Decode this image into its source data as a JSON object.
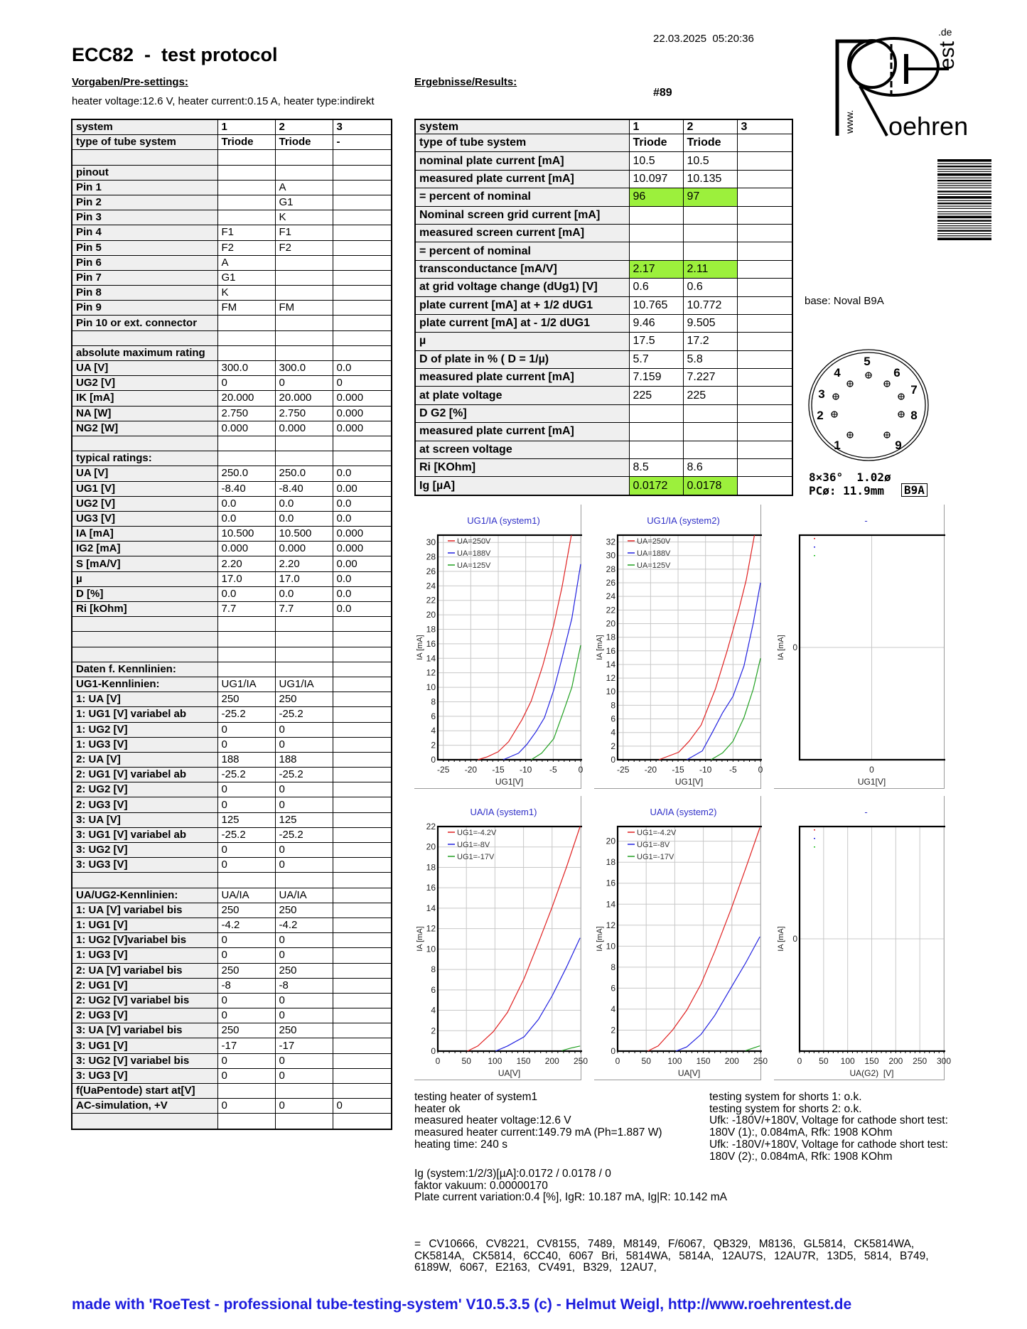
{
  "header": {
    "title": "ECC82  -  test protocol",
    "datetime": "22.03.2025  05:20:36",
    "presettings_heading": "Vorgaben/Pre-settings:",
    "results_heading": "Ergebnisse/Results:",
    "heater_info": "heater voltage:12.6 V, heater current:0.15 A, heater type:indirekt",
    "test_number": "#89"
  },
  "logo": {
    "main": "oehren",
    "vertical": "est",
    "tld": ".de",
    "www": "www."
  },
  "presettings_table": {
    "rows": [
      [
        "system",
        "1",
        "2",
        "3"
      ],
      [
        "type of tube system",
        "Triode",
        "Triode",
        "-"
      ],
      [
        "",
        "",
        "",
        ""
      ],
      [
        "pinout",
        "",
        "",
        ""
      ],
      [
        "Pin 1",
        "",
        "A",
        ""
      ],
      [
        "Pin 2",
        "",
        "G1",
        ""
      ],
      [
        "Pin 3",
        "",
        "K",
        ""
      ],
      [
        "Pin 4",
        "F1",
        "F1",
        ""
      ],
      [
        "Pin 5",
        "F2",
        "F2",
        ""
      ],
      [
        "Pin 6",
        "A",
        "",
        ""
      ],
      [
        "Pin 7",
        "G1",
        "",
        ""
      ],
      [
        "Pin 8",
        "K",
        "",
        ""
      ],
      [
        "Pin 9",
        "FM",
        "FM",
        ""
      ],
      [
        "Pin 10 or ext. connector",
        "",
        "",
        ""
      ],
      [
        "",
        "",
        "",
        ""
      ],
      [
        "absolute maximum rating",
        "",
        "",
        ""
      ],
      [
        "UA [V]",
        "300.0",
        "300.0",
        "0.0"
      ],
      [
        "UG2 [V]",
        "0",
        "0",
        "0"
      ],
      [
        "IK [mA]",
        "20.000",
        "20.000",
        "0.000"
      ],
      [
        "NA [W]",
        "2.750",
        "2.750",
        "0.000"
      ],
      [
        "NG2 [W]",
        "0.000",
        "0.000",
        "0.000"
      ],
      [
        "",
        "",
        "",
        ""
      ],
      [
        "typical ratings:",
        "",
        "",
        ""
      ],
      [
        "UA [V]",
        "250.0",
        "250.0",
        "0.0"
      ],
      [
        "UG1 [V]",
        "-8.40",
        "-8.40",
        "0.00"
      ],
      [
        "UG2 [V]",
        "0.0",
        "0.0",
        "0.0"
      ],
      [
        "UG3 [V]",
        "0.0",
        "0.0",
        "0.0"
      ],
      [
        "IA [mA]",
        "10.500",
        "10.500",
        "0.000"
      ],
      [
        "IG2 [mA]",
        "0.000",
        "0.000",
        "0.000"
      ],
      [
        "S [mA/V]",
        "2.20",
        "2.20",
        "0.00"
      ],
      [
        "µ",
        "17.0",
        "17.0",
        "0.0"
      ],
      [
        "D [%]",
        "0.0",
        "0.0",
        "0.0"
      ],
      [
        "Ri [kOhm]",
        "7.7",
        "7.7",
        "0.0"
      ],
      [
        "",
        "",
        "",
        ""
      ],
      [
        "",
        "",
        "",
        ""
      ],
      [
        "",
        "",
        "",
        ""
      ],
      [
        "Daten f. Kennlinien:",
        "",
        "",
        ""
      ],
      [
        "UG1-Kennlinien:",
        "UG1/IA",
        "UG1/IA",
        ""
      ],
      [
        "1: UA [V]",
        "250",
        "250",
        ""
      ],
      [
        "1: UG1 [V] variabel ab",
        "-25.2",
        "-25.2",
        ""
      ],
      [
        "1: UG2 [V]",
        "0",
        "0",
        ""
      ],
      [
        "1: UG3 [V]",
        "0",
        "0",
        ""
      ],
      [
        "2: UA [V]",
        "188",
        "188",
        ""
      ],
      [
        "2: UG1 [V] variabel ab",
        "-25.2",
        "-25.2",
        ""
      ],
      [
        "2: UG2 [V]",
        "0",
        "0",
        ""
      ],
      [
        "2: UG3 [V]",
        "0",
        "0",
        ""
      ],
      [
        "3: UA [V]",
        "125",
        "125",
        ""
      ],
      [
        "3: UG1 [V] variabel ab",
        "-25.2",
        "-25.2",
        ""
      ],
      [
        "3: UG2 [V]",
        "0",
        "0",
        ""
      ],
      [
        "3: UG3 [V]",
        "0",
        "0",
        ""
      ],
      [
        "",
        "",
        "",
        ""
      ],
      [
        "UA/UG2-Kennlinien:",
        "UA/IA",
        "UA/IA",
        ""
      ],
      [
        "1: UA [V] variabel bis",
        "250",
        "250",
        ""
      ],
      [
        "1: UG1 [V]",
        "-4.2",
        "-4.2",
        ""
      ],
      [
        "1: UG2 [V]variabel bis",
        "0",
        "0",
        ""
      ],
      [
        "1: UG3 [V]",
        "0",
        "0",
        ""
      ],
      [
        "2: UA [V] variabel bis",
        "250",
        "250",
        ""
      ],
      [
        "2: UG1 [V]",
        "-8",
        "-8",
        ""
      ],
      [
        "2: UG2 [V] variabel bis",
        "0",
        "0",
        ""
      ],
      [
        "2: UG3 [V]",
        "0",
        "0",
        ""
      ],
      [
        "3: UA [V] variabel bis",
        "250",
        "250",
        ""
      ],
      [
        "3: UG1 [V]",
        "-17",
        "-17",
        ""
      ],
      [
        "3: UG2 [V] variabel bis",
        "0",
        "0",
        ""
      ],
      [
        "3: UG3 [V]",
        "0",
        "0",
        ""
      ],
      [
        "f(UaPentode) start at[V]",
        "",
        "",
        ""
      ],
      [
        "AC-simulation, +V",
        "0",
        "0",
        "0"
      ],
      [
        "",
        "",
        "",
        ""
      ]
    ]
  },
  "results_table": {
    "highlight_color": "#9cf03c",
    "highlight_rows": [
      4,
      8,
      20
    ],
    "rows": [
      [
        "system",
        "1",
        "2",
        "3"
      ],
      [
        "type of tube system",
        "Triode",
        "Triode",
        ""
      ],
      [
        "nominal plate current [mA]",
        "10.5",
        "10.5",
        ""
      ],
      [
        "measured plate current [mA]",
        "10.097",
        "10.135",
        ""
      ],
      [
        "= percent of nominal",
        "96",
        "97",
        ""
      ],
      [
        "Nominal screen grid current [mA]",
        "",
        "",
        ""
      ],
      [
        "measured screen current [mA]",
        "",
        "",
        ""
      ],
      [
        "= percent of nominal",
        "",
        "",
        ""
      ],
      [
        "transconductance [mA/V]",
        "2.17",
        "2.11",
        ""
      ],
      [
        "at grid voltage change (dUg1) [V]",
        "0.6",
        "0.6",
        ""
      ],
      [
        "plate current [mA] at + 1/2 dUG1",
        "10.765",
        "10.772",
        ""
      ],
      [
        "plate current [mA] at - 1/2 dUG1",
        "9.46",
        "9.505",
        ""
      ],
      [
        "µ",
        "17.5",
        "17.2",
        ""
      ],
      [
        "D of plate in % ( D = 1/µ)",
        "5.7",
        "5.8",
        ""
      ],
      [
        "measured plate current [mA]",
        "7.159",
        "7.227",
        ""
      ],
      [
        "at plate voltage",
        "225",
        "225",
        ""
      ],
      [
        "D G2 [%]",
        "",
        "",
        ""
      ],
      [
        "measured plate current [mA]",
        "",
        "",
        ""
      ],
      [
        "at screen voltage",
        "",
        "",
        ""
      ],
      [
        "Ri [KOhm]",
        "8.5",
        "8.6",
        ""
      ],
      [
        "Ig [µA]",
        "0.0172",
        "0.0178",
        ""
      ]
    ]
  },
  "base": {
    "label": "base: Noval B9A",
    "pin_labels": [
      "1",
      "2",
      "3",
      "4",
      "5",
      "6",
      "7",
      "8",
      "9"
    ],
    "spec_line1": "8×36°  1.02ø",
    "spec_line2": "PCø: 11.9mm",
    "code": "B9A"
  },
  "chart_data": [
    {
      "type": "line",
      "title": "UG1/IA (system1)",
      "xlabel": "UG1[V]",
      "ylabel": "IA [mA]",
      "xlim": [
        -26,
        0
      ],
      "ylim": [
        0,
        31
      ],
      "xticks": [
        -25,
        -20,
        -15,
        -10,
        -5,
        0
      ],
      "yticks": [
        0,
        2,
        4,
        6,
        8,
        10,
        12,
        14,
        16,
        18,
        20,
        22,
        24,
        26,
        28,
        30
      ],
      "grid": true,
      "legend": "top-left",
      "series": [
        {
          "name": "UA=250V",
          "color": "#e02020",
          "x": [
            -18.7,
            -17,
            -15,
            -13.1,
            -10.7,
            -9,
            -6.9,
            -4.9,
            -3.4,
            -1.7
          ],
          "y": [
            0,
            0.4,
            1.1,
            2.5,
            5.5,
            8.1,
            13,
            18.6,
            23.8,
            31
          ]
        },
        {
          "name": "UA=188V",
          "color": "#2020e0",
          "x": [
            -14.1,
            -11.3,
            -9.8,
            -8.1,
            -6.6,
            -4.9,
            -3.4,
            -1.6,
            0
          ],
          "y": [
            0,
            0.9,
            2.1,
            3.9,
            5.8,
            9.6,
            14,
            19.5,
            27
          ]
        },
        {
          "name": "UA=125V",
          "color": "#20a020",
          "x": [
            -9,
            -7.1,
            -4.9,
            -3.2,
            -1.6,
            0
          ],
          "y": [
            0,
            0.9,
            2.9,
            6.5,
            10,
            15.8
          ]
        }
      ]
    },
    {
      "type": "line",
      "title": "UG1/IA (system2)",
      "xlabel": "UG1[V]",
      "ylabel": "IA [mA]",
      "xlim": [
        -26,
        0
      ],
      "ylim": [
        0,
        33
      ],
      "xticks": [
        -25,
        -20,
        -15,
        -10,
        -5,
        0
      ],
      "yticks": [
        0,
        2,
        4,
        6,
        8,
        10,
        12,
        14,
        16,
        18,
        20,
        22,
        24,
        26,
        28,
        30,
        32
      ],
      "grid": true,
      "legend": "top-left",
      "series": [
        {
          "name": "UA=250V",
          "color": "#e02020",
          "x": [
            -18.5,
            -14.9,
            -13,
            -10.8,
            -8.2,
            -6.1,
            -3.9,
            -2.6,
            -1.1
          ],
          "y": [
            0,
            1.1,
            2.7,
            5.1,
            10.4,
            15.9,
            22.2,
            26.4,
            33
          ]
        },
        {
          "name": "UA=188V",
          "color": "#2020e0",
          "x": [
            -13.4,
            -10.6,
            -8.7,
            -6.9,
            -5,
            -3,
            -1.3,
            0
          ],
          "y": [
            0,
            1.3,
            4.1,
            6.9,
            9.3,
            13.8,
            20.1,
            26
          ]
        },
        {
          "name": "UA=125V",
          "color": "#20a020",
          "x": [
            -9,
            -6.9,
            -5,
            -3,
            -1.3,
            0
          ],
          "y": [
            0,
            1,
            2.7,
            6.2,
            10.4,
            14.9
          ]
        }
      ]
    },
    {
      "type": "line",
      "title": "-",
      "xlabel": "UG1[V]",
      "ylabel": "IA [mA]",
      "xlim": [
        -1,
        1
      ],
      "ylim": [
        -1,
        1
      ],
      "xticks": [
        0
      ],
      "yticks": [
        0
      ],
      "grid": true,
      "legend": "top-left",
      "series": [
        {
          "name": "",
          "color": "#e02020",
          "x": [],
          "y": []
        },
        {
          "name": "",
          "color": "#2020e0",
          "x": [],
          "y": []
        },
        {
          "name": "",
          "color": "#20c020",
          "x": [],
          "y": []
        }
      ]
    },
    {
      "type": "line",
      "title": "UA/IA (system1)",
      "xlabel": "UA[V]",
      "ylabel": "IA [mA]",
      "xlim": [
        0,
        250
      ],
      "ylim": [
        0,
        22
      ],
      "xticks": [
        0,
        50,
        100,
        150,
        200,
        250
      ],
      "yticks": [
        0,
        2,
        4,
        6,
        8,
        10,
        12,
        14,
        16,
        18,
        20,
        22
      ],
      "grid": true,
      "legend": "top-left",
      "series": [
        {
          "name": "UG1=-4.2V",
          "color": "#e02020",
          "x": [
            51.7,
            70,
            97,
            122,
            151,
            176,
            200,
            225,
            249
          ],
          "y": [
            0,
            0.5,
            1.9,
            3.8,
            7.1,
            10.6,
            14.1,
            18,
            22
          ]
        },
        {
          "name": "UG1=-8V",
          "color": "#2020e0",
          "x": [
            101,
            122,
            151,
            176,
            200,
            225,
            249
          ],
          "y": [
            0,
            0.5,
            1.4,
            3.1,
            5.4,
            8.2,
            11.1
          ]
        },
        {
          "name": "UG1=-17V",
          "color": "#20a020",
          "x": [
            217,
            233,
            249
          ],
          "y": [
            0.05,
            0.3,
            0.5
          ]
        }
      ]
    },
    {
      "type": "line",
      "title": "UA/IA (system2)",
      "xlabel": "UA[V]",
      "ylabel": "IA [mA]",
      "xlim": [
        0,
        250
      ],
      "ylim": [
        0,
        21.4
      ],
      "xticks": [
        0,
        50,
        100,
        150,
        200,
        250
      ],
      "yticks": [
        0,
        2,
        4,
        6,
        8,
        10,
        12,
        14,
        16,
        18,
        20
      ],
      "grid": true,
      "legend": "top-left",
      "series": [
        {
          "name": "UG1=-4.2V",
          "color": "#e02020",
          "x": [
            52.6,
            71,
            96,
            121,
            146,
            170,
            199,
            224,
            249
          ],
          "y": [
            0,
            0.5,
            2,
            3.9,
            6.4,
            9.5,
            13.6,
            17.4,
            21.3
          ]
        },
        {
          "name": "UG1=-8V",
          "color": "#2020e0",
          "x": [
            102,
            121,
            146,
            170,
            199,
            224,
            249
          ],
          "y": [
            0,
            0.4,
            1.6,
            3.4,
            6.1,
            8.4,
            10.9
          ]
        },
        {
          "name": "UG1=-17V",
          "color": "#20a020",
          "x": [
            224,
            249
          ],
          "y": [
            0.05,
            0.5
          ]
        }
      ]
    },
    {
      "type": "line",
      "title": "-",
      "xlabel": "UA(G2)  [V]",
      "ylabel": "IA [mA]",
      "xlim": [
        0,
        300
      ],
      "ylim": [
        -1,
        1
      ],
      "xticks": [
        0,
        50,
        100,
        150,
        200,
        250,
        300
      ],
      "yticks": [
        0
      ],
      "grid": true,
      "legend": "top-left",
      "series": [
        {
          "name": "",
          "color": "#e02020",
          "x": [],
          "y": []
        },
        {
          "name": "",
          "color": "#2020e0",
          "x": [],
          "y": []
        },
        {
          "name": "",
          "color": "#20c020",
          "x": [],
          "y": []
        }
      ]
    }
  ],
  "heater_test": {
    "lines": [
      "testing heater of system1",
      "heater ok",
      "measured heater voltage:12.6 V",
      "measured heater current:149.79 mA (Ph=1.887 W)",
      "heating time: 240 s"
    ]
  },
  "shorts_test": {
    "lines": [
      "testing system for shorts 1: o.k.",
      "testing system for shorts 2: o.k.",
      "Ufk: -180V/+180V, Voltage for cathode short test:",
      "180V (1):, 0.084mA, Rfk: 1908 KOhm",
      "Ufk: -180V/+180V, Voltage for cathode short test:",
      "180V (2):, 0.084mA, Rfk: 1908 KOhm"
    ]
  },
  "vacuum": {
    "lines": [
      "Ig (system:1/2/3)[µA]:0.0172 / 0.0178 / 0",
      "faktor vakuum: 0.00000170",
      "Plate current variation:0.4 [%], IgR: 10.187 mA, Ig|R: 10.142 mA"
    ]
  },
  "equivalents": {
    "lines": [
      "= CV10666, CV8221, CV8155, 7489, M8149, F/6067, QB329, M8136, GL5814, CK5814WA,",
      "CK5814A, CK5814, 6CC40, 6067 Bri, 5814WA, 5814A, 12AU7S, 12AU7R, 13D5, 5814, B749,",
      "6189W, 6067, E2163, CV491, B329, 12AU7,"
    ]
  },
  "footer": "made with 'RoeTest - professional tube-testing-system' V10.5.3.5 (c) - Helmut Weigl, http://www.roehrentest.de"
}
